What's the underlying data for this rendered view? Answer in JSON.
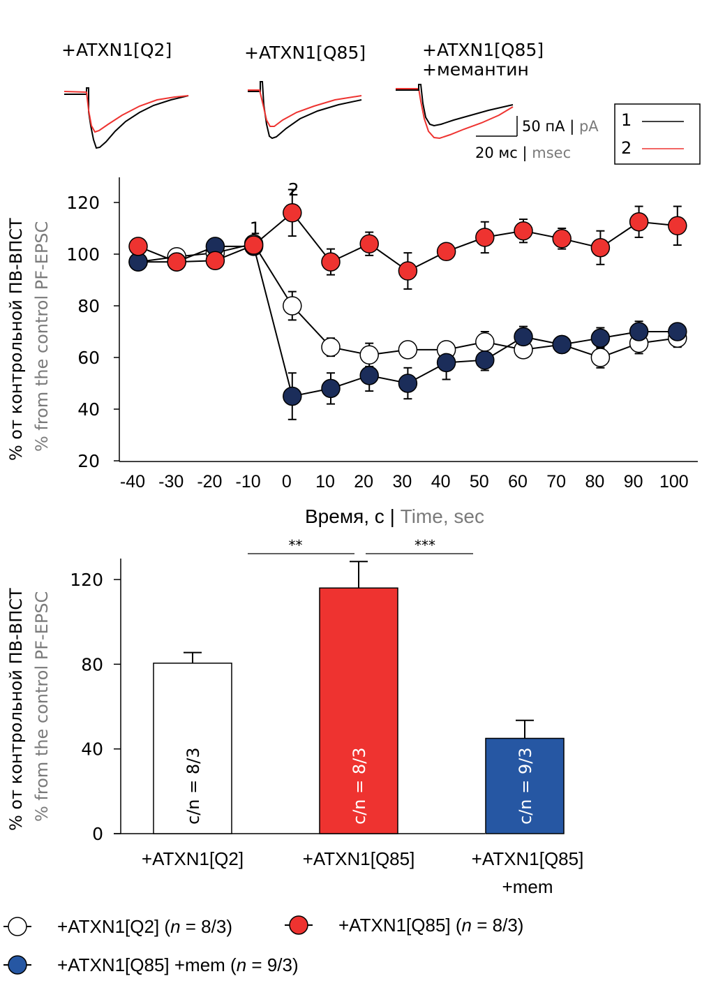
{
  "colors": {
    "q2_fill": "#ffffff",
    "q85_fill": "#ee3330",
    "mem_fill_line": "#1b2d5a",
    "mem_fill_bar": "#2657a3",
    "trace_1": "#000000",
    "trace_2": "#ee3330",
    "gray_text": "#7a7a7a"
  },
  "traces_panel": {
    "titles": [
      {
        "line1": "+ATXN1[Q2]",
        "line2": ""
      },
      {
        "line1": "+ATXN1[Q85]",
        "line2": ""
      },
      {
        "line1": "+ATXN1[Q85]",
        "line2": "+мемантин"
      }
    ],
    "scale_bar": {
      "current_ru": "50 пА",
      "current_sep": "|",
      "current_en": "pA",
      "time_ru": "20 мс",
      "time_sep": "|",
      "time_en": "msec"
    },
    "legend": [
      {
        "label": "1",
        "color": "#000000"
      },
      {
        "label": "2",
        "color": "#ee3330"
      }
    ]
  },
  "chart_data": [
    {
      "type": "line",
      "title": "",
      "xlabel_ru": "Время, с",
      "xlabel_sep": "|",
      "xlabel_en": "Time, sec",
      "ylabel_ru": "% от контрольной ПВ-ВПСТ",
      "ylabel_en": "% from the control PF-EPSC",
      "x": [
        -40,
        -30,
        -20,
        -10,
        0,
        10,
        20,
        30,
        40,
        50,
        60,
        70,
        80,
        90,
        100
      ],
      "x_tick_labels": [
        "-40",
        "-30",
        "-20",
        "-10",
        "0",
        "10",
        "20",
        "30",
        "40",
        "50",
        "60",
        "70",
        "80",
        "90",
        "100"
      ],
      "y_ticks": [
        20,
        40,
        60,
        80,
        100,
        120
      ],
      "ylim": [
        20,
        130
      ],
      "xlim": [
        -43,
        103
      ],
      "grid": false,
      "annotations": [
        {
          "text": "1",
          "x": -10,
          "y": 112
        },
        {
          "text": "2",
          "x": 0,
          "y": 127
        }
      ],
      "series": [
        {
          "name": "+ATXN1[Q2]",
          "marker": "white",
          "values": [
            97,
            99,
            100.5,
            104,
            80,
            64,
            61,
            63,
            63,
            66,
            63,
            65,
            60,
            65.5,
            67.5
          ],
          "errors": [
            0,
            0,
            0,
            0,
            5.5,
            3.5,
            4.5,
            0,
            0,
            4,
            0,
            3,
            4,
            4,
            3.5
          ]
        },
        {
          "name": "+ATXN1[Q85]",
          "marker": "red",
          "values": [
            103,
            97,
            97.5,
            103.5,
            116,
            97,
            104,
            93.5,
            101,
            106.5,
            109,
            106,
            102.5,
            112.5,
            111
          ],
          "errors": [
            0,
            0,
            0,
            0,
            9,
            5,
            4.5,
            7,
            3,
            6,
            4.5,
            4,
            6.5,
            6,
            7.5
          ]
        },
        {
          "name": "+ATXN1[Q85] +mem",
          "marker": "navy",
          "values": [
            97,
            97,
            103,
            103,
            45,
            48,
            53,
            50,
            58,
            59,
            68,
            65,
            67.5,
            70,
            70
          ],
          "errors": [
            0,
            0,
            0,
            0,
            9,
            6,
            6,
            6,
            6.5,
            4,
            4,
            3,
            4,
            4,
            3
          ]
        }
      ]
    },
    {
      "type": "bar",
      "title": "",
      "ylabel_ru": "% от контрольной ПВ-ВПСТ",
      "ylabel_en": "% from the control PF-EPSC",
      "categories": [
        {
          "line1": "+ATXN1[Q2]",
          "line2": ""
        },
        {
          "line1": "+ATXN1[Q85]",
          "line2": ""
        },
        {
          "line1": "+ATXN1[Q85]",
          "line2": "+mem"
        }
      ],
      "values": [
        80.5,
        116,
        45
      ],
      "errors": [
        5,
        12.5,
        8.5
      ],
      "bar_labels": [
        "c/n = 8/3",
        "c/n = 8/3",
        "c/n = 9/3"
      ],
      "y_ticks": [
        0,
        40,
        80,
        120
      ],
      "ylim": [
        0,
        130
      ],
      "grid": false,
      "significance": [
        {
          "from": 0,
          "to": 1,
          "label": "**"
        },
        {
          "from": 1,
          "to": 2,
          "label": "***"
        }
      ]
    }
  ],
  "legend": [
    {
      "label": "+ATXN1[Q2] (",
      "n_italic": "n",
      "n_text": " = 8/3)",
      "marker": "white"
    },
    {
      "label": "+ATXN1[Q85] (",
      "n_italic": "n",
      "n_text": " = 8/3)",
      "marker": "red"
    },
    {
      "label": "+ATXN1[Q85] +mem (",
      "n_italic": "n",
      "n_text": " = 9/3)",
      "marker": "blue"
    }
  ]
}
